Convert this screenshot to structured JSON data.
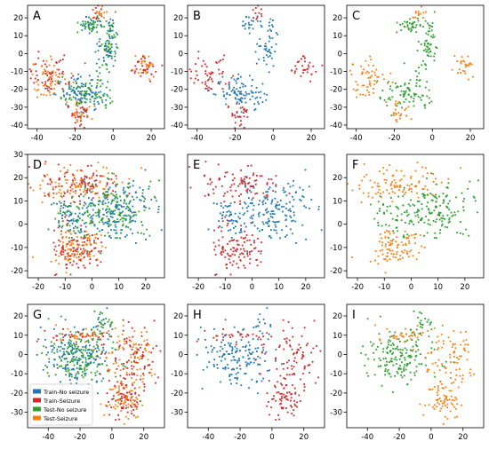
{
  "chart_data": [
    {
      "type": "scatter",
      "label": "A",
      "xlim": [
        -45,
        27
      ],
      "ylim": [
        -42,
        27
      ],
      "xticks": [
        -40,
        -20,
        0,
        20
      ],
      "yticks": [
        -40,
        -30,
        -20,
        -10,
        0,
        10,
        20
      ],
      "show_series": [
        "Train-No seizure",
        "Train-Seizure",
        "Test-No seizure",
        "Test-Seizure"
      ],
      "clusters": [
        {
          "series": [
            "Train-No seizure",
            "Test-No seizure"
          ],
          "x": -10,
          "y": 16,
          "sx": 4,
          "sy": 2,
          "n": 60
        },
        {
          "series": [
            "Train-No seizure",
            "Test-No seizure"
          ],
          "x": -1,
          "y": 12,
          "sx": 1.5,
          "sy": 4,
          "n": 40
        },
        {
          "series": [
            "Train-No seizure",
            "Test-No seizure"
          ],
          "x": -4,
          "y": 0,
          "sx": 3,
          "sy": 4,
          "n": 60
        },
        {
          "series": [
            "Train-No seizure",
            "Test-No seizure"
          ],
          "x": -15,
          "y": -22,
          "sx": 7,
          "sy": 5,
          "n": 180
        },
        {
          "series": [
            "Train-Seizure",
            "Test-Seizure"
          ],
          "x": -7,
          "y": 22,
          "sx": 2,
          "sy": 2,
          "n": 25
        },
        {
          "series": [
            "Train-Seizure",
            "Test-Seizure"
          ],
          "x": 17,
          "y": -7,
          "sx": 4,
          "sy": 3,
          "n": 60
        },
        {
          "series": [
            "Train-Seizure",
            "Test-Seizure"
          ],
          "x": -34,
          "y": -13,
          "sx": 5,
          "sy": 5,
          "n": 110
        },
        {
          "series": [
            "Train-Seizure",
            "Test-Seizure"
          ],
          "x": -18,
          "y": -34,
          "sx": 3,
          "sy": 4,
          "n": 55
        }
      ]
    },
    {
      "type": "scatter",
      "label": "B",
      "xlim": [
        -45,
        27
      ],
      "ylim": [
        -42,
        27
      ],
      "xticks": [
        -40,
        -20,
        0,
        20
      ],
      "yticks": [
        -40,
        -30,
        -20,
        -10,
        0,
        10,
        20
      ],
      "show_series": [
        "Train-No seizure",
        "Train-Seizure"
      ],
      "clusters": [
        {
          "series": [
            "Train-No seizure",
            "Test-No seizure"
          ],
          "x": -10,
          "y": 16,
          "sx": 4,
          "sy": 2,
          "n": 60
        },
        {
          "series": [
            "Train-No seizure",
            "Test-No seizure"
          ],
          "x": -1,
          "y": 12,
          "sx": 1.5,
          "sy": 4,
          "n": 40
        },
        {
          "series": [
            "Train-No seizure",
            "Test-No seizure"
          ],
          "x": -4,
          "y": 0,
          "sx": 3,
          "sy": 4,
          "n": 60
        },
        {
          "series": [
            "Train-No seizure",
            "Test-No seizure"
          ],
          "x": -15,
          "y": -22,
          "sx": 7,
          "sy": 5,
          "n": 180
        },
        {
          "series": [
            "Train-Seizure",
            "Test-Seizure"
          ],
          "x": -7,
          "y": 22,
          "sx": 2,
          "sy": 2,
          "n": 25
        },
        {
          "series": [
            "Train-Seizure",
            "Test-Seizure"
          ],
          "x": 17,
          "y": -7,
          "sx": 4,
          "sy": 3,
          "n": 60
        },
        {
          "series": [
            "Train-Seizure",
            "Test-Seizure"
          ],
          "x": -34,
          "y": -13,
          "sx": 5,
          "sy": 5,
          "n": 110
        },
        {
          "series": [
            "Train-Seizure",
            "Test-Seizure"
          ],
          "x": -18,
          "y": -34,
          "sx": 3,
          "sy": 4,
          "n": 55
        }
      ]
    },
    {
      "type": "scatter",
      "label": "C",
      "xlim": [
        -45,
        27
      ],
      "ylim": [
        -42,
        27
      ],
      "xticks": [
        -40,
        -20,
        0,
        20
      ],
      "yticks": [
        -40,
        -30,
        -20,
        -10,
        0,
        10,
        20
      ],
      "show_series": [
        "Test-No seizure",
        "Test-Seizure"
      ],
      "clusters": [
        {
          "series": [
            "Train-No seizure",
            "Test-No seizure"
          ],
          "x": -10,
          "y": 16,
          "sx": 4,
          "sy": 2,
          "n": 60
        },
        {
          "series": [
            "Train-No seizure",
            "Test-No seizure"
          ],
          "x": -1,
          "y": 12,
          "sx": 1.5,
          "sy": 4,
          "n": 40
        },
        {
          "series": [
            "Train-No seizure",
            "Test-No seizure"
          ],
          "x": -4,
          "y": 0,
          "sx": 3,
          "sy": 4,
          "n": 60
        },
        {
          "series": [
            "Train-No seizure",
            "Test-No seizure"
          ],
          "x": -15,
          "y": -22,
          "sx": 7,
          "sy": 5,
          "n": 180
        },
        {
          "series": [
            "Train-Seizure",
            "Test-Seizure"
          ],
          "x": -7,
          "y": 22,
          "sx": 2,
          "sy": 2,
          "n": 25
        },
        {
          "series": [
            "Train-Seizure",
            "Test-Seizure"
          ],
          "x": 17,
          "y": -7,
          "sx": 4,
          "sy": 3,
          "n": 60
        },
        {
          "series": [
            "Train-Seizure",
            "Test-Seizure"
          ],
          "x": -34,
          "y": -13,
          "sx": 5,
          "sy": 5,
          "n": 110
        },
        {
          "series": [
            "Train-Seizure",
            "Test-Seizure"
          ],
          "x": -18,
          "y": -34,
          "sx": 3,
          "sy": 4,
          "n": 55
        }
      ]
    },
    {
      "type": "scatter",
      "label": "D",
      "xlim": [
        -24,
        27
      ],
      "ylim": [
        -23,
        30
      ],
      "xticks": [
        -20,
        -10,
        0,
        10,
        20
      ],
      "yticks": [
        -20,
        -10,
        0,
        10,
        20,
        30
      ],
      "show_series": [
        "Train-No seizure",
        "Train-Seizure",
        "Test-No seizure",
        "Test-Seizure"
      ],
      "clusters": [
        {
          "series": [
            "Train-Seizure",
            "Test-Seizure"
          ],
          "x": -4,
          "y": 17,
          "sx": 9,
          "sy": 4,
          "n": 200
        },
        {
          "series": [
            "Train-Seizure",
            "Test-Seizure"
          ],
          "x": -6,
          "y": -11,
          "sx": 5,
          "sy": 5,
          "n": 200
        },
        {
          "series": [
            "Train-No seizure",
            "Test-No seizure"
          ],
          "x": 8,
          "y": 6,
          "sx": 8,
          "sy": 6,
          "n": 340
        },
        {
          "series": [
            "Train-No seizure",
            "Test-No seizure"
          ],
          "x": -7,
          "y": 3,
          "sx": 5,
          "sy": 4,
          "n": 70
        }
      ]
    },
    {
      "type": "scatter",
      "label": "E",
      "xlim": [
        -24,
        27
      ],
      "ylim": [
        -23,
        30
      ],
      "xticks": [
        -20,
        -10,
        0,
        10,
        20
      ],
      "yticks": [],
      "show_series": [
        "Train-No seizure",
        "Train-Seizure"
      ],
      "clusters": [
        {
          "series": [
            "Train-Seizure",
            "Test-Seizure"
          ],
          "x": -4,
          "y": 17,
          "sx": 9,
          "sy": 4,
          "n": 200
        },
        {
          "series": [
            "Train-Seizure",
            "Test-Seizure"
          ],
          "x": -6,
          "y": -11,
          "sx": 5,
          "sy": 5,
          "n": 200
        },
        {
          "series": [
            "Train-No seizure",
            "Test-No seizure"
          ],
          "x": 8,
          "y": 6,
          "sx": 8,
          "sy": 6,
          "n": 340
        },
        {
          "series": [
            "Train-No seizure",
            "Test-No seizure"
          ],
          "x": -7,
          "y": 3,
          "sx": 5,
          "sy": 4,
          "n": 70
        }
      ]
    },
    {
      "type": "scatter",
      "label": "F",
      "xlim": [
        -24,
        27
      ],
      "ylim": [
        -23,
        30
      ],
      "xticks": [
        -20,
        -10,
        0,
        10,
        20
      ],
      "yticks": [
        -20,
        -10,
        0,
        10,
        20
      ],
      "show_series": [
        "Test-No seizure",
        "Test-Seizure"
      ],
      "clusters": [
        {
          "series": [
            "Train-Seizure",
            "Test-Seizure"
          ],
          "x": -4,
          "y": 17,
          "sx": 9,
          "sy": 4,
          "n": 200
        },
        {
          "series": [
            "Train-Seizure",
            "Test-Seizure"
          ],
          "x": -6,
          "y": -11,
          "sx": 5,
          "sy": 5,
          "n": 200
        },
        {
          "series": [
            "Train-No seizure",
            "Test-No seizure"
          ],
          "x": 8,
          "y": 6,
          "sx": 8,
          "sy": 6,
          "n": 340
        },
        {
          "series": [
            "Train-No seizure",
            "Test-No seizure"
          ],
          "x": -7,
          "y": 3,
          "sx": 5,
          "sy": 4,
          "n": 70
        }
      ]
    },
    {
      "type": "scatter",
      "label": "G",
      "xlim": [
        -53,
        33
      ],
      "ylim": [
        -38,
        26
      ],
      "xticks": [
        -40,
        -20,
        0,
        20
      ],
      "yticks": [
        -30,
        -20,
        -10,
        0,
        10,
        20
      ],
      "show_series": [
        "Train-No seizure",
        "Train-Seizure",
        "Test-No seizure",
        "Test-Seizure"
      ],
      "clusters": [
        {
          "series": [
            "Train-No seizure",
            "Test-No seizure"
          ],
          "x": -22,
          "y": -2,
          "sx": 11,
          "sy": 7,
          "n": 320
        },
        {
          "series": [
            "Train-No seizure",
            "Test-No seizure"
          ],
          "x": -5,
          "y": 16,
          "sx": 4,
          "sy": 4,
          "n": 40
        },
        {
          "series": [
            "Train-Seizure",
            "Test-Seizure"
          ],
          "x": 12,
          "y": -2,
          "sx": 8,
          "sy": 8,
          "n": 170
        },
        {
          "series": [
            "Train-Seizure",
            "Test-Seizure"
          ],
          "x": 8,
          "y": -24,
          "sx": 6,
          "sy": 5,
          "n": 130
        },
        {
          "series": [
            "Train-Seizure",
            "Test-Seizure"
          ],
          "x": -18,
          "y": 10,
          "sx": 10,
          "sy": 2,
          "n": 60
        }
      ],
      "legend": {
        "placement": "lower-left",
        "entries": [
          "Train-No seizure",
          "Train-Seizure",
          "Test-No seizure",
          "Test-Seizure"
        ]
      }
    },
    {
      "type": "scatter",
      "label": "H",
      "xlim": [
        -53,
        33
      ],
      "ylim": [
        -38,
        26
      ],
      "xticks": [
        -40,
        -20,
        0,
        20
      ],
      "yticks": [
        -30,
        -20,
        -10,
        0,
        10,
        20
      ],
      "show_series": [
        "Train-No seizure",
        "Train-Seizure"
      ],
      "clusters": [
        {
          "series": [
            "Train-No seizure",
            "Test-No seizure"
          ],
          "x": -22,
          "y": -2,
          "sx": 11,
          "sy": 7,
          "n": 320
        },
        {
          "series": [
            "Train-No seizure",
            "Test-No seizure"
          ],
          "x": -5,
          "y": 16,
          "sx": 4,
          "sy": 4,
          "n": 40
        },
        {
          "series": [
            "Train-Seizure",
            "Test-Seizure"
          ],
          "x": 12,
          "y": -2,
          "sx": 8,
          "sy": 8,
          "n": 170
        },
        {
          "series": [
            "Train-Seizure",
            "Test-Seizure"
          ],
          "x": 8,
          "y": -24,
          "sx": 6,
          "sy": 5,
          "n": 130
        },
        {
          "series": [
            "Train-Seizure",
            "Test-Seizure"
          ],
          "x": -18,
          "y": 10,
          "sx": 10,
          "sy": 2,
          "n": 60
        }
      ]
    },
    {
      "type": "scatter",
      "label": "I",
      "xlim": [
        -53,
        33
      ],
      "ylim": [
        -38,
        26
      ],
      "xticks": [
        -40,
        -20,
        0,
        20
      ],
      "yticks": [
        -30,
        -20,
        -10,
        0,
        10,
        20
      ],
      "show_series": [
        "Test-No seizure",
        "Test-Seizure"
      ],
      "clusters": [
        {
          "series": [
            "Train-No seizure",
            "Test-No seizure"
          ],
          "x": -22,
          "y": -2,
          "sx": 11,
          "sy": 7,
          "n": 320
        },
        {
          "series": [
            "Train-No seizure",
            "Test-No seizure"
          ],
          "x": -5,
          "y": 16,
          "sx": 4,
          "sy": 4,
          "n": 40
        },
        {
          "series": [
            "Train-Seizure",
            "Test-Seizure"
          ],
          "x": 12,
          "y": -2,
          "sx": 8,
          "sy": 8,
          "n": 170
        },
        {
          "series": [
            "Train-Seizure",
            "Test-Seizure"
          ],
          "x": 8,
          "y": -24,
          "sx": 6,
          "sy": 5,
          "n": 130
        },
        {
          "series": [
            "Train-Seizure",
            "Test-Seizure"
          ],
          "x": -18,
          "y": 10,
          "sx": 10,
          "sy": 2,
          "n": 60
        }
      ]
    }
  ],
  "series_colors": {
    "Train-No seizure": "#1f77b4",
    "Train-Seizure": "#d62728",
    "Test-No seizure": "#2ca02c",
    "Test-Seizure": "#ff7f0e"
  }
}
